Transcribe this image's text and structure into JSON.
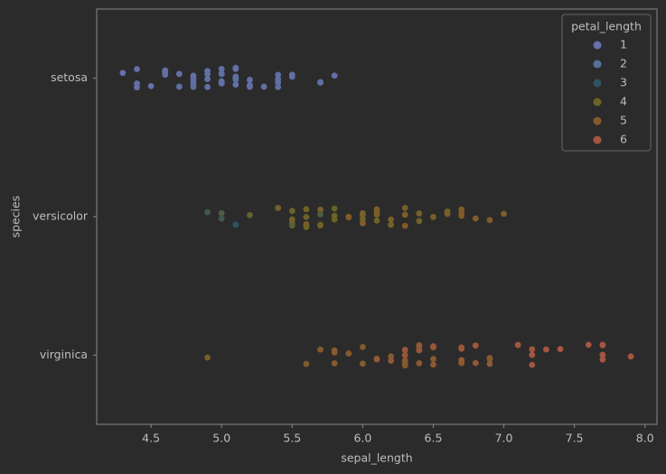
{
  "chart_data": {
    "type": "strip",
    "xlabel": "sepal_length",
    "ylabel": "species",
    "categories": [
      "setosa",
      "versicolor",
      "virginica"
    ],
    "xlim": [
      4.115,
      8.085
    ],
    "xticks": [
      {
        "value": 4.5,
        "label": "4.5"
      },
      {
        "value": 5,
        "label": "5.0"
      },
      {
        "value": 5.5,
        "label": "5.5"
      },
      {
        "value": 6,
        "label": "6.0"
      },
      {
        "value": 6.5,
        "label": "6.5"
      },
      {
        "value": 7,
        "label": "7.0"
      },
      {
        "value": 7.5,
        "label": "7.5"
      },
      {
        "value": 8,
        "label": "8.0"
      }
    ],
    "legend": {
      "title": "petal_length",
      "position": "upper right",
      "entries": [
        {
          "value": 1,
          "color": "#6a6fad"
        },
        {
          "value": 2,
          "color": "#58709a"
        },
        {
          "value": 3,
          "color": "#2f5461"
        },
        {
          "value": 4,
          "color": "#6b6425"
        },
        {
          "value": 5,
          "color": "#845a2c"
        },
        {
          "value": 6,
          "color": "#a55640"
        }
      ]
    },
    "series": [
      {
        "x": [
          5.1,
          4.9,
          4.7,
          4.6,
          5.0,
          5.4,
          4.6,
          5.0,
          4.4,
          4.9,
          5.4,
          4.8,
          4.8,
          4.3,
          5.8,
          5.7,
          5.4,
          5.1,
          5.7,
          5.1,
          5.4,
          5.1,
          4.6,
          5.1,
          4.8,
          5.0,
          5.0,
          5.2,
          5.2,
          4.7,
          4.8,
          5.4,
          5.2,
          5.5,
          4.9,
          5.0,
          5.5,
          4.9,
          4.4,
          5.1,
          5.0,
          4.5,
          4.4,
          5.0,
          5.1,
          4.8,
          5.1,
          4.6,
          5.3,
          5.0
        ],
        "petal_length": [
          1.4,
          1.4,
          1.3,
          1.5,
          1.4,
          1.7,
          1.4,
          1.5,
          1.4,
          1.5,
          1.5,
          1.6,
          1.4,
          1.1,
          1.2,
          1.5,
          1.3,
          1.4,
          1.7,
          1.5,
          1.7,
          1.5,
          1.0,
          1.7,
          1.9,
          1.6,
          1.6,
          1.5,
          1.4,
          1.6,
          1.6,
          1.5,
          1.5,
          1.4,
          1.5,
          1.2,
          1.3,
          1.4,
          1.3,
          1.5,
          1.3,
          1.3,
          1.3,
          1.6,
          1.9,
          1.4,
          1.6,
          1.4,
          1.5,
          1.4
        ]
      },
      {
        "x": [
          7.0,
          6.4,
          6.9,
          5.5,
          6.5,
          5.7,
          6.3,
          4.9,
          6.6,
          5.2,
          5.0,
          5.9,
          6.0,
          6.1,
          5.6,
          6.7,
          5.6,
          5.8,
          6.2,
          5.6,
          5.9,
          6.1,
          6.3,
          6.1,
          6.4,
          6.6,
          6.8,
          6.7,
          6.0,
          5.7,
          5.5,
          5.5,
          5.8,
          6.0,
          5.4,
          6.0,
          6.7,
          6.3,
          5.6,
          5.5,
          5.5,
          6.1,
          5.8,
          5.0,
          5.6,
          5.7,
          5.7,
          6.2,
          5.1,
          5.7
        ],
        "petal_length": [
          4.7,
          4.5,
          4.9,
          4.0,
          4.6,
          4.5,
          4.7,
          3.3,
          4.6,
          3.9,
          3.5,
          4.2,
          4.0,
          4.7,
          3.6,
          4.4,
          4.5,
          4.1,
          4.5,
          3.9,
          4.8,
          4.0,
          4.9,
          4.7,
          4.3,
          4.4,
          4.8,
          5.0,
          4.5,
          3.5,
          3.8,
          3.7,
          3.9,
          5.1,
          4.5,
          4.5,
          4.7,
          4.4,
          4.1,
          4.0,
          4.4,
          4.6,
          4.0,
          3.3,
          4.2,
          4.2,
          4.2,
          4.3,
          3.0,
          4.1
        ]
      },
      {
        "x": [
          6.3,
          5.8,
          7.1,
          6.3,
          6.5,
          7.6,
          4.9,
          7.3,
          6.7,
          7.2,
          6.5,
          6.4,
          6.8,
          5.7,
          5.8,
          6.4,
          6.5,
          7.7,
          7.7,
          6.0,
          6.9,
          5.6,
          7.7,
          6.3,
          6.7,
          7.2,
          6.2,
          6.1,
          6.4,
          7.2,
          7.4,
          7.9,
          6.4,
          6.3,
          6.1,
          7.7,
          6.3,
          6.4,
          6.0,
          6.9,
          6.7,
          6.9,
          5.8,
          6.8,
          6.7,
          6.7,
          6.3,
          6.5,
          6.2,
          5.9
        ],
        "petal_length": [
          6.0,
          5.1,
          5.9,
          5.6,
          5.8,
          6.6,
          4.5,
          6.3,
          5.8,
          6.1,
          5.1,
          5.3,
          5.5,
          5.0,
          5.1,
          5.3,
          5.5,
          6.7,
          6.9,
          5.0,
          5.7,
          4.9,
          6.7,
          4.9,
          5.7,
          6.0,
          4.8,
          4.9,
          5.6,
          5.8,
          6.1,
          6.4,
          5.6,
          5.1,
          5.6,
          6.1,
          5.6,
          5.5,
          4.8,
          5.4,
          5.6,
          5.1,
          5.1,
          5.9,
          5.7,
          5.2,
          5.0,
          5.2,
          5.4,
          5.1
        ]
      }
    ]
  }
}
